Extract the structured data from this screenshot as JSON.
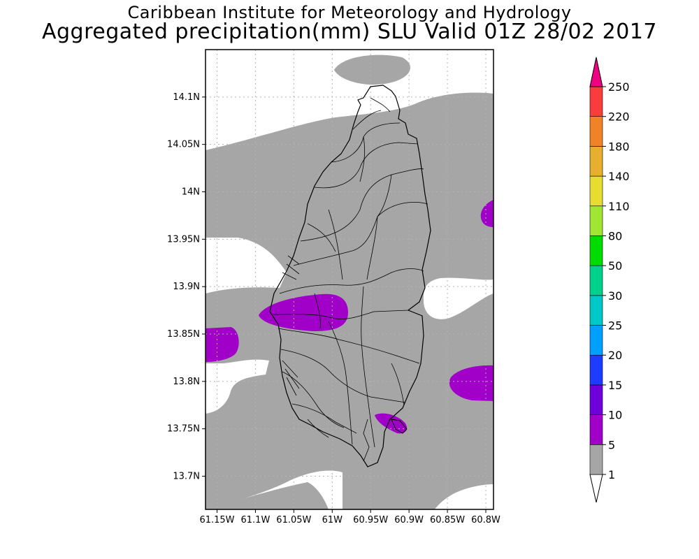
{
  "title": {
    "line1": "Caribbean Institute for Meteorology and Hydrology",
    "line2": "Aggregated precipitation(mm) SLU Valid 01Z 28/02 2017"
  },
  "map": {
    "lon_range": [
      -61.165,
      -60.79
    ],
    "lat_range": [
      13.665,
      14.15
    ],
    "x_ticks": [
      {
        "v": -61.15,
        "label": "61.15W"
      },
      {
        "v": -61.1,
        "label": "61.1W"
      },
      {
        "v": -61.05,
        "label": "61.05W"
      },
      {
        "v": -61.0,
        "label": "61W"
      },
      {
        "v": -60.95,
        "label": "60.95W"
      },
      {
        "v": -60.9,
        "label": "60.9W"
      },
      {
        "v": -60.85,
        "label": "60.85W"
      },
      {
        "v": -60.8,
        "label": "60.8W"
      }
    ],
    "y_ticks": [
      {
        "v": 14.1,
        "label": "14.1N"
      },
      {
        "v": 14.05,
        "label": "14.05N"
      },
      {
        "v": 14.0,
        "label": "14N"
      },
      {
        "v": 13.95,
        "label": "13.95N"
      },
      {
        "v": 13.9,
        "label": "13.9N"
      },
      {
        "v": 13.85,
        "label": "13.85N"
      },
      {
        "v": 13.8,
        "label": "13.8N"
      },
      {
        "v": 13.75,
        "label": "13.75N"
      },
      {
        "v": 13.7,
        "label": "13.7N"
      }
    ],
    "grid": true,
    "colors": {
      "band_1_5": "#a6a6a6",
      "band_5_10": "#a000c8",
      "no_rain": "#ffffff",
      "coast": "#000000"
    }
  },
  "colorbar": {
    "labels": [
      "1",
      "5",
      "10",
      "15",
      "20",
      "25",
      "30",
      "50",
      "80",
      "110",
      "140",
      "180",
      "220",
      "250"
    ],
    "colors": [
      "#a6a6a6",
      "#a000c8",
      "#6e00dc",
      "#1e3cff",
      "#00a0ff",
      "#00c8c8",
      "#00d28c",
      "#00dc00",
      "#a0e632",
      "#e6dc32",
      "#e6af2d",
      "#f08228",
      "#fa3c3c",
      "#f00082"
    ]
  }
}
